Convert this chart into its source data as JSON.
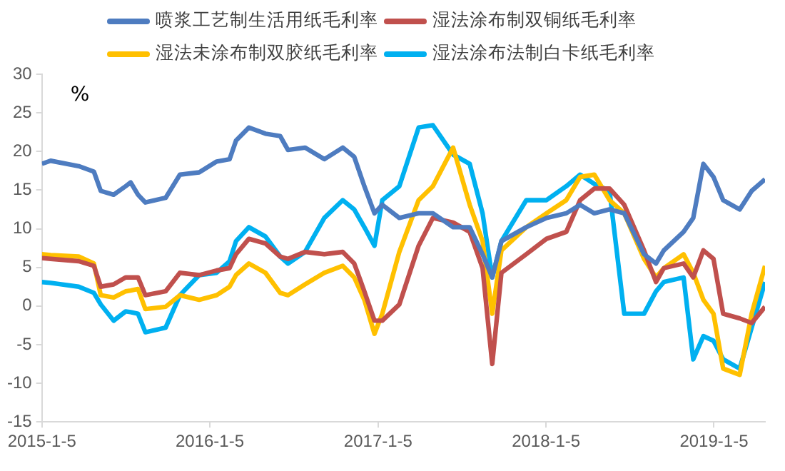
{
  "chart_data": {
    "type": "line",
    "annotations": [
      "%"
    ],
    "x": [
      "2015-01-05",
      "2015-01-24",
      "2015-03-26",
      "2015-04-28",
      "2015-05-13",
      "2015-06-10",
      "2015-07-06",
      "2015-07-17",
      "2015-08-02",
      "2015-08-18",
      "2015-10-01",
      "2015-11-01",
      "2015-12-13",
      "2016-01-20",
      "2016-02-17",
      "2016-03-02",
      "2016-03-30",
      "2016-05-05",
      "2016-06-06",
      "2016-06-23",
      "2016-07-30",
      "2016-09-10",
      "2016-10-20",
      "2016-11-14",
      "2016-12-06",
      "2016-12-28",
      "2017-01-14",
      "2017-02-20",
      "2017-04-03",
      "2017-05-04",
      "2017-06-17",
      "2017-07-23",
      "2017-08-20",
      "2017-09-10",
      "2017-09-30",
      "2017-11-23",
      "2018-01-06",
      "2018-02-18",
      "2018-03-20",
      "2018-04-20",
      "2018-05-23",
      "2018-06-24",
      "2018-08-06",
      "2018-09-01",
      "2018-09-18",
      "2018-10-31",
      "2018-11-21",
      "2018-12-13",
      "2019-01-04",
      "2019-01-25",
      "2019-03-02",
      "2019-03-28",
      "2019-04-26"
    ],
    "series": [
      {
        "name": "喷浆工艺制生活用纸毛利率",
        "color": "#4e7cc0",
        "values": [
          18.4,
          18.8,
          18.1,
          17.4,
          14.9,
          14.4,
          15.5,
          16.0,
          14.4,
          13.4,
          14.0,
          17.0,
          17.3,
          18.7,
          19.0,
          21.4,
          23.1,
          22.3,
          22.0,
          20.2,
          20.5,
          19.0,
          20.5,
          19.3,
          15.5,
          12.0,
          13.1,
          11.4,
          12.0,
          12.0,
          10.2,
          10.2,
          6.7,
          3.7,
          8.4,
          10.2,
          11.4,
          12.0,
          13.1,
          12.0,
          12.5,
          12.0,
          6.7,
          5.5,
          7.2,
          9.6,
          11.4,
          18.4,
          16.7,
          13.7,
          12.5,
          14.9,
          16.4
        ]
      },
      {
        "name": "湿法涂布制双铜纸毛利率",
        "color": "#c0504d",
        "values": [
          6.2,
          6.1,
          5.8,
          5.2,
          2.5,
          2.8,
          3.7,
          3.7,
          3.7,
          1.4,
          1.9,
          4.3,
          4.0,
          4.6,
          4.9,
          6.7,
          8.7,
          8.1,
          6.4,
          6.1,
          7.0,
          6.7,
          7.0,
          5.5,
          1.9,
          -1.9,
          -1.9,
          0.2,
          7.8,
          11.4,
          10.8,
          9.6,
          4.9,
          -7.5,
          4.3,
          6.7,
          8.7,
          9.6,
          13.7,
          15.2,
          15.2,
          13.1,
          7.2,
          3.1,
          4.9,
          5.5,
          3.7,
          7.2,
          6.1,
          -1.0,
          -1.6,
          -2.2,
          -0.1
        ]
      },
      {
        "name": "湿法未涂布制双胶纸毛利率",
        "color": "#ffc000",
        "values": [
          6.7,
          6.6,
          6.4,
          5.5,
          1.4,
          1.1,
          1.9,
          2.0,
          2.2,
          -0.4,
          -0.1,
          1.4,
          0.8,
          1.4,
          2.5,
          4.0,
          5.5,
          4.3,
          1.7,
          1.4,
          2.8,
          4.3,
          5.2,
          3.7,
          0.8,
          -3.6,
          -1.0,
          7.0,
          13.7,
          15.5,
          20.5,
          13.1,
          8.4,
          -1.0,
          7.2,
          10.2,
          12.0,
          13.7,
          16.7,
          17.0,
          13.7,
          12.0,
          6.1,
          3.7,
          4.9,
          6.7,
          4.3,
          0.8,
          -1.0,
          -8.1,
          -8.9,
          -1.0,
          5.2
        ]
      },
      {
        "name": "湿法涂布法制白卡纸毛利率",
        "color": "#00b0f0",
        "values": [
          3.1,
          3.0,
          2.5,
          1.7,
          0.2,
          -1.9,
          -0.7,
          -0.8,
          -1.0,
          -3.4,
          -2.8,
          1.4,
          4.0,
          4.3,
          5.8,
          8.4,
          10.2,
          9.0,
          6.4,
          5.5,
          7.0,
          11.4,
          13.7,
          12.5,
          10.2,
          7.8,
          13.7,
          15.5,
          23.1,
          23.4,
          19.6,
          18.4,
          12.0,
          3.7,
          8.4,
          13.7,
          13.7,
          15.5,
          17.0,
          15.8,
          14.9,
          -1.0,
          -1.0,
          1.9,
          3.1,
          3.7,
          -6.9,
          -3.9,
          -4.5,
          -6.9,
          -8.1,
          -2.8,
          3.1
        ]
      }
    ],
    "xlim": [
      "2015-01-05",
      "2019-04-26"
    ],
    "xticks": [
      {
        "value": "2015-01-05",
        "label": "2015-1-5"
      },
      {
        "value": "2016-01-05",
        "label": "2016-1-5"
      },
      {
        "value": "2017-01-05",
        "label": "2017-1-5"
      },
      {
        "value": "2018-01-05",
        "label": "2018-1-5"
      },
      {
        "value": "2019-01-05",
        "label": "2019-1-5"
      }
    ],
    "ylim": [
      -15,
      30
    ],
    "yticks": [
      -15,
      -10,
      -5,
      0,
      5,
      10,
      15,
      20,
      25,
      30
    ],
    "grid": false,
    "legend": "top",
    "marker": "none",
    "line_style": "solid"
  }
}
